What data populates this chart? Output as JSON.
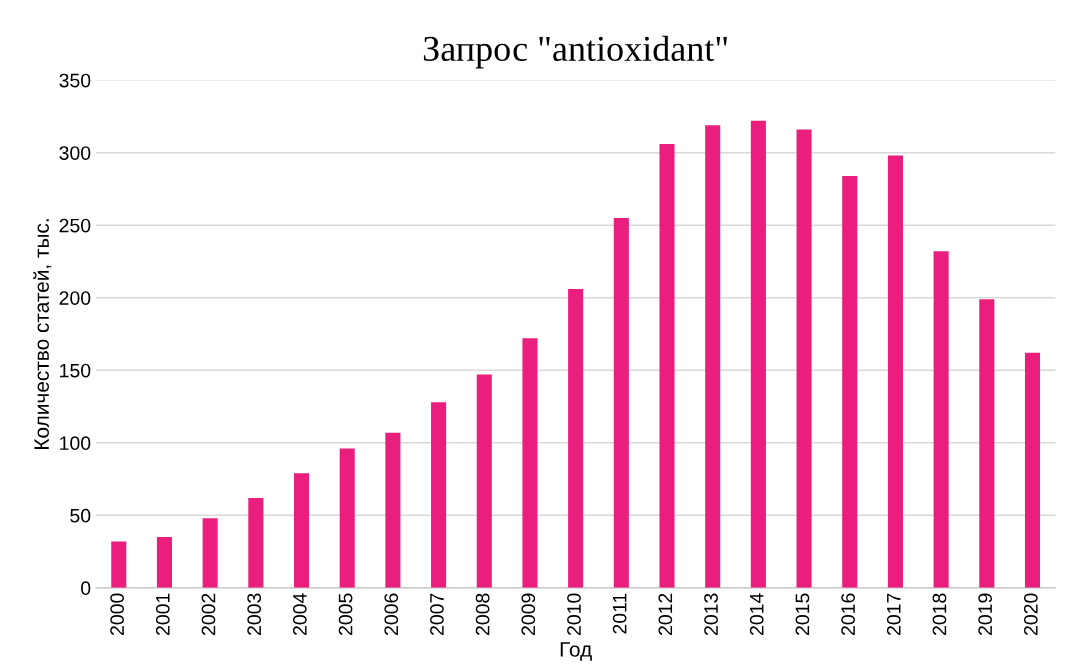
{
  "chart_data": {
    "type": "bar",
    "title": "Запрос \"antioxidant\"",
    "xlabel": "Год",
    "ylabel": "Количество статей, тыс.",
    "categories": [
      "2000",
      "2001",
      "2002",
      "2003",
      "2004",
      "2005",
      "2006",
      "2007",
      "2008",
      "2009",
      "2010",
      "2011",
      "2012",
      "2013",
      "2014",
      "2015",
      "2016",
      "2017",
      "2018",
      "2019",
      "2020"
    ],
    "values": [
      32,
      35,
      48,
      62,
      79,
      96,
      107,
      128,
      147,
      172,
      206,
      255,
      306,
      319,
      322,
      316,
      284,
      298,
      232,
      199,
      162
    ],
    "color": "#e91e7d",
    "ylim": [
      0,
      350
    ],
    "yticks": [
      0,
      50,
      100,
      150,
      200,
      250,
      300,
      350
    ],
    "grid": "y",
    "legend": false
  }
}
